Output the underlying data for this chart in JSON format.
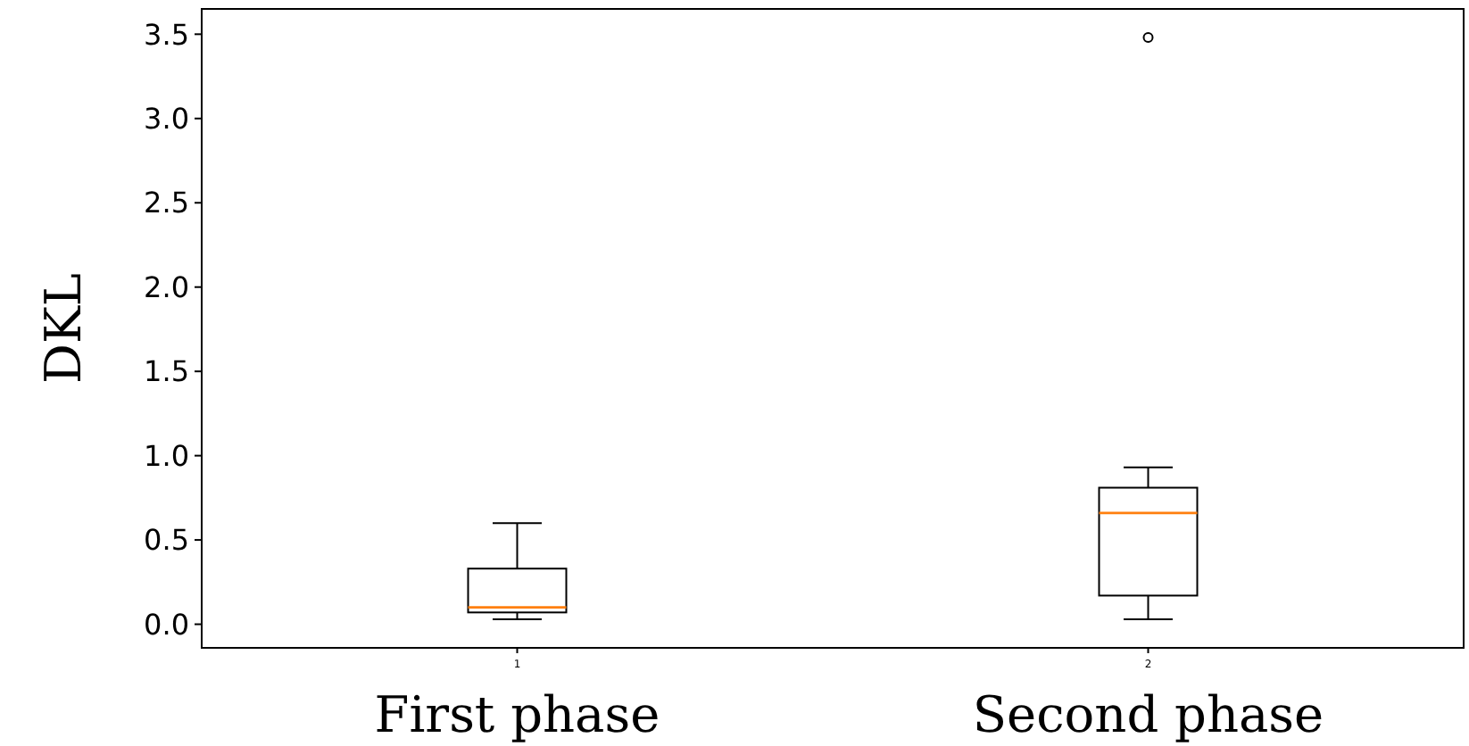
{
  "chart_data": {
    "type": "box",
    "ylabel": "DKL",
    "categories": [
      "1",
      "2"
    ],
    "boxes": [
      {
        "low": 0.03,
        "q1": 0.07,
        "median": 0.1,
        "q3": 0.33,
        "high": 0.6
      },
      {
        "low": 0.03,
        "q1": 0.17,
        "median": 0.66,
        "q3": 0.81,
        "high": 0.93,
        "outliers": [
          3.48
        ]
      }
    ],
    "ylim": [
      -0.14,
      3.65
    ],
    "yticks": [
      {
        "value": 0,
        "label": "0.0"
      },
      {
        "value": 0.5,
        "label": "0.5"
      },
      {
        "value": 1,
        "label": "1.0"
      },
      {
        "value": 1.5,
        "label": "1.5"
      },
      {
        "value": 2,
        "label": "2.0"
      },
      {
        "value": 2.5,
        "label": "2.5"
      },
      {
        "value": 3,
        "label": "3.0"
      },
      {
        "value": 3.5,
        "label": "3.5"
      }
    ],
    "annotations": [
      "First phase",
      "Second phase"
    ],
    "grid": false
  }
}
